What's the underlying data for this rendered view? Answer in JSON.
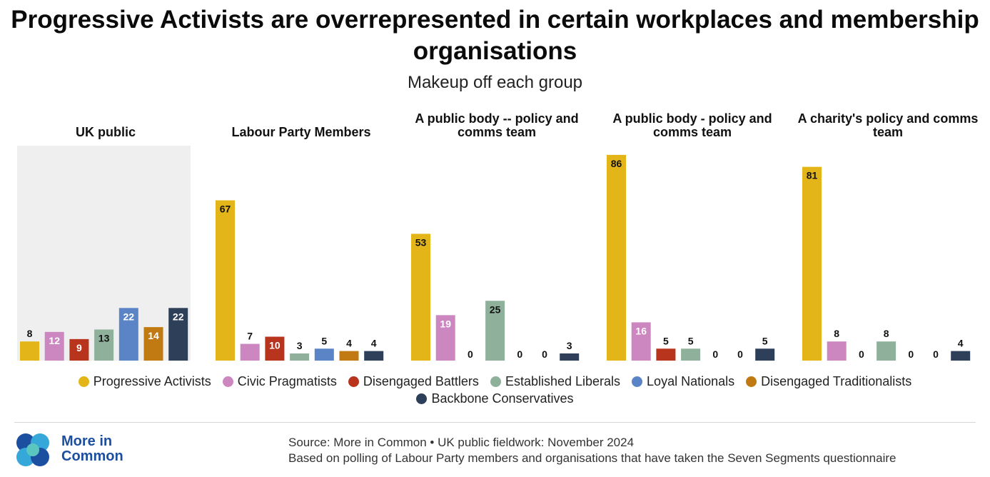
{
  "title": "Progressive Activists are overrepresented in certain workplaces and membership organisations",
  "subtitle": "Makeup off each group",
  "colors": {
    "Progressive Activists": "#e3b518",
    "Civic Pragmatists": "#cc86c0",
    "Disengaged Battlers": "#b8341d",
    "Established Liberals": "#8fb09b",
    "Loyal Nationals": "#5b84c6",
    "Disengaged Traditionalists": "#c17a12",
    "Backbone Conservatives": "#2e3f5a"
  },
  "legend": [
    "Progressive Activists",
    "Civic Pragmatists",
    "Disengaged Battlers",
    "Established Liberals",
    "Loyal Nationals",
    "Disengaged Traditionalists",
    "Backbone Conservatives"
  ],
  "chart_data": {
    "type": "bar",
    "ylim": [
      0,
      100
    ],
    "grid": false,
    "legend_position": "bottom",
    "highlighted_panel": "UK public",
    "series_names": [
      "Progressive Activists",
      "Civic Pragmatists",
      "Disengaged Battlers",
      "Established Liberals",
      "Loyal Nationals",
      "Disengaged Traditionalists",
      "Backbone Conservatives"
    ],
    "panels": [
      {
        "title": "UK public",
        "values": [
          8,
          12,
          9,
          13,
          22,
          14,
          22
        ]
      },
      {
        "title": "Labour Party Members",
        "values": [
          67,
          7,
          10,
          3,
          5,
          4,
          4
        ]
      },
      {
        "title": "A public body -- policy and comms team",
        "values": [
          53,
          19,
          0,
          25,
          0,
          0,
          3
        ]
      },
      {
        "title": "A public body - policy and comms team",
        "values": [
          86,
          16,
          5,
          5,
          0,
          0,
          5
        ]
      },
      {
        "title": "A charity's policy and comms team",
        "values": [
          81,
          8,
          0,
          8,
          0,
          0,
          4
        ]
      }
    ]
  },
  "footer": {
    "logo_text": "More in Common",
    "source_line1": "Source: More in Common • UK public fieldwork: November 2024",
    "source_line2": "Based on polling of Labour Party members and organisations that have taken the Seven Segments questionnaire"
  }
}
